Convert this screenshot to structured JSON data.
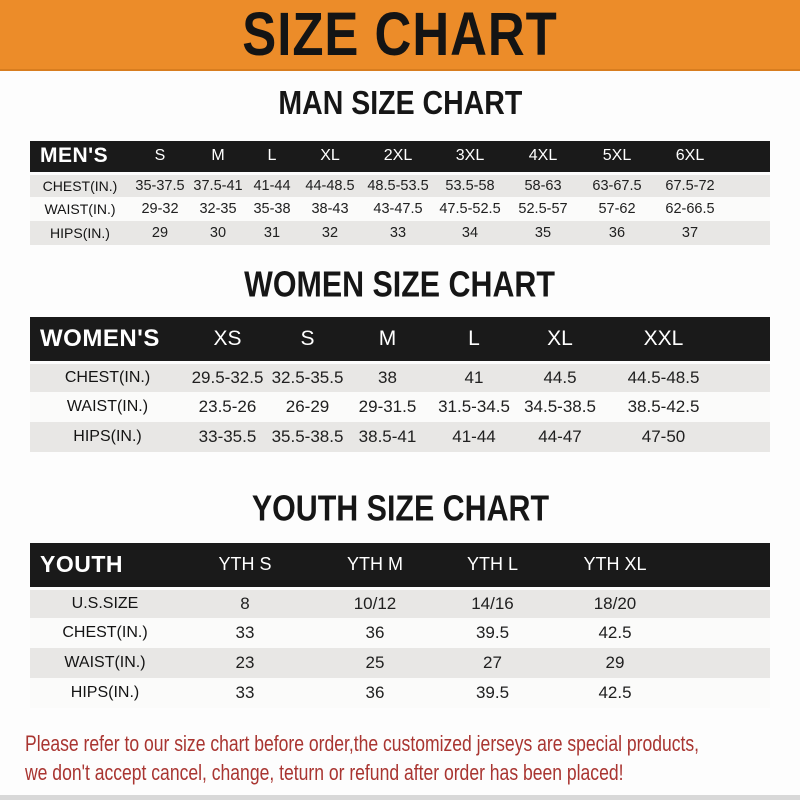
{
  "banner": {
    "title": "SIZE CHART"
  },
  "colors": {
    "banner_bg": "#EC8C29",
    "table_header_bg": "#1A1A1A",
    "row_alt_bg": "#E8E7E5",
    "footer_text": "#A93531"
  },
  "sections": {
    "men": {
      "heading": "MAN SIZE CHART",
      "label": "MEN'S",
      "columns": [
        "S",
        "M",
        "L",
        "XL",
        "2XL",
        "3XL",
        "4XL",
        "5XL",
        "6XL"
      ],
      "rows": [
        {
          "label": "CHEST(IN.)",
          "values": [
            "35-37.5",
            "37.5-41",
            "41-44",
            "44-48.5",
            "48.5-53.5",
            "53.5-58",
            "58-63",
            "63-67.5",
            "67.5-72"
          ]
        },
        {
          "label": "WAIST(IN.)",
          "values": [
            "29-32",
            "32-35",
            "35-38",
            "38-43",
            "43-47.5",
            "47.5-52.5",
            "52.5-57",
            "57-62",
            "62-66.5"
          ]
        },
        {
          "label": "HIPS(IN.)",
          "values": [
            "29",
            "30",
            "31",
            "32",
            "33",
            "34",
            "35",
            "36",
            "37"
          ]
        }
      ]
    },
    "women": {
      "heading": "WOMEN SIZE CHART",
      "label": "WOMEN'S",
      "columns": [
        "XS",
        "S",
        "M",
        "L",
        "XL",
        "XXL"
      ],
      "rows": [
        {
          "label": "CHEST(IN.)",
          "values": [
            "29.5-32.5",
            "32.5-35.5",
            "38",
            "41",
            "44.5",
            "44.5-48.5"
          ]
        },
        {
          "label": "WAIST(IN.)",
          "values": [
            "23.5-26",
            "26-29",
            "29-31.5",
            "31.5-34.5",
            "34.5-38.5",
            "38.5-42.5"
          ]
        },
        {
          "label": "HIPS(IN.)",
          "values": [
            "33-35.5",
            "35.5-38.5",
            "38.5-41",
            "41-44",
            "44-47",
            "47-50"
          ]
        }
      ]
    },
    "youth": {
      "heading": "YOUTH SIZE CHART",
      "label": "YOUTH",
      "columns": [
        "YTH S",
        "YTH M",
        "YTH L",
        "YTH XL"
      ],
      "rows": [
        {
          "label": "U.S.SIZE",
          "values": [
            "8",
            "10/12",
            "14/16",
            "18/20"
          ]
        },
        {
          "label": "CHEST(IN.)",
          "values": [
            "33",
            "36",
            "39.5",
            "42.5"
          ]
        },
        {
          "label": "WAIST(IN.)",
          "values": [
            "23",
            "25",
            "27",
            "29"
          ]
        },
        {
          "label": "HIPS(IN.)",
          "values": [
            "33",
            "36",
            "39.5",
            "42.5"
          ]
        }
      ]
    }
  },
  "footer": {
    "line1": "Please refer to our size chart before order,the customized jerseys are special products,",
    "line2": "we don't accept cancel, change, teturn or refund after order has been placed!"
  }
}
